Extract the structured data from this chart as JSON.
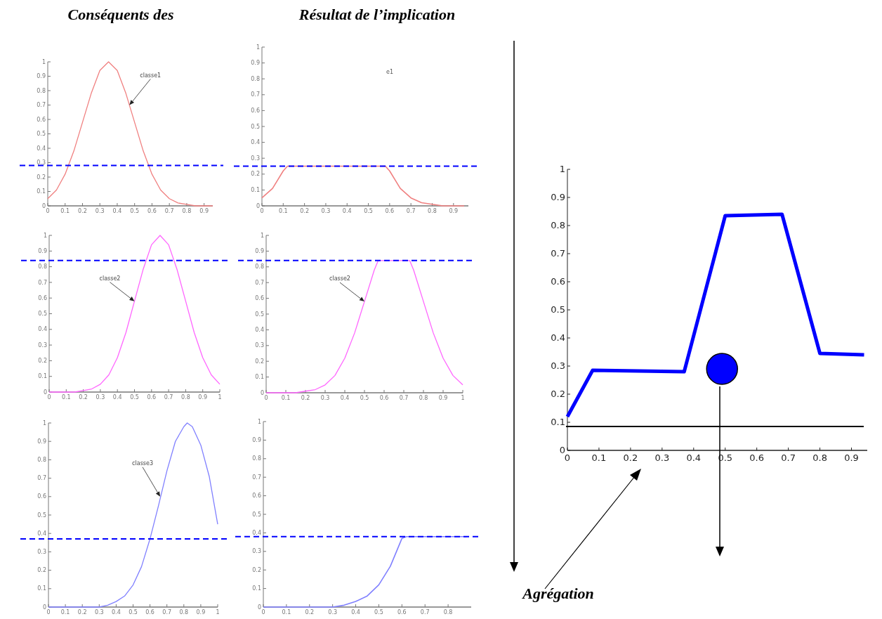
{
  "chart_data": [
    {
      "type": "line",
      "title": "Conséquents des",
      "x": [
        0,
        0.05,
        0.1,
        0.15,
        0.2,
        0.25,
        0.3,
        0.35,
        0.4,
        0.45,
        0.5,
        0.55,
        0.6,
        0.65,
        0.7,
        0.75,
        0.8,
        0.85,
        0.9,
        0.95
      ],
      "series": [
        {
          "color": "#f08080",
          "values": [
            0.05,
            0.11,
            0.22,
            0.38,
            0.58,
            0.78,
            0.94,
            1,
            0.94,
            0.78,
            0.58,
            0.38,
            0.22,
            0.11,
            0.05,
            0.02,
            0.01,
            0,
            0,
            0
          ]
        }
      ],
      "xlim": [
        0,
        0.95
      ],
      "ylim": [
        0,
        1
      ],
      "xticks": [
        0,
        0.1,
        0.2,
        0.3,
        0.4,
        0.5,
        0.6,
        0.7,
        0.8,
        0.9
      ],
      "yticks": [
        0,
        0.1,
        0.2,
        0.3,
        0.4,
        0.5,
        0.6,
        0.7,
        0.8,
        0.9,
        1
      ],
      "ref_lines": [
        {
          "axis": "y",
          "value": 0.28,
          "color": "#0000ff",
          "line_style": "dashed"
        }
      ],
      "annotations": [
        {
          "text": "classe1",
          "x": 0.47,
          "y": 0.7
        }
      ]
    },
    {
      "type": "line",
      "title": "Résultat de l’implication",
      "x": [
        0,
        0.05,
        0.1,
        0.12,
        0.55,
        0.58,
        0.6,
        0.65,
        0.7,
        0.75,
        0.8,
        0.85,
        0.9,
        0.95
      ],
      "series": [
        {
          "color": "#f08080",
          "values": [
            0.05,
            0.11,
            0.22,
            0.25,
            0.25,
            0.25,
            0.22,
            0.11,
            0.05,
            0.02,
            0.01,
            0,
            0,
            0
          ]
        }
      ],
      "xlim": [
        0,
        0.97
      ],
      "ylim": [
        0,
        1
      ],
      "xticks": [
        0,
        0.1,
        0.2,
        0.3,
        0.4,
        0.5,
        0.6,
        0.7,
        0.8,
        0.9
      ],
      "yticks": [
        0,
        0.1,
        0.2,
        0.3,
        0.4,
        0.5,
        0.6,
        0.7,
        0.8,
        0.9,
        1
      ],
      "ref_lines": [
        {
          "axis": "y",
          "value": 0.25,
          "color": "#0000ff",
          "line_style": "dashed"
        }
      ],
      "annotations": [
        "e1"
      ]
    },
    {
      "type": "line",
      "x": [
        0,
        0.05,
        0.1,
        0.15,
        0.2,
        0.25,
        0.3,
        0.35,
        0.4,
        0.45,
        0.5,
        0.55,
        0.6,
        0.65,
        0.7,
        0.75,
        0.8,
        0.85,
        0.9,
        0.95,
        1
      ],
      "series": [
        {
          "color": "#ff66ff",
          "values": [
            0,
            0,
            0,
            0,
            0.01,
            0.02,
            0.05,
            0.11,
            0.22,
            0.38,
            0.58,
            0.78,
            0.94,
            1,
            0.94,
            0.78,
            0.58,
            0.38,
            0.22,
            0.11,
            0.05
          ]
        }
      ],
      "xlim": [
        0,
        1
      ],
      "ylim": [
        0,
        1
      ],
      "xticks": [
        0,
        0.1,
        0.2,
        0.3,
        0.4,
        0.5,
        0.6,
        0.7,
        0.8,
        0.9,
        1
      ],
      "yticks": [
        0,
        0.1,
        0.2,
        0.3,
        0.4,
        0.5,
        0.6,
        0.7,
        0.8,
        0.9,
        1
      ],
      "ref_lines": [
        {
          "axis": "y",
          "value": 0.84,
          "color": "#0000ff",
          "line_style": "dashed"
        }
      ],
      "annotations": [
        {
          "text": "classe2",
          "x": 0.5,
          "y": 0.58
        }
      ]
    },
    {
      "type": "line",
      "x": [
        0,
        0.05,
        0.1,
        0.15,
        0.2,
        0.25,
        0.3,
        0.35,
        0.4,
        0.45,
        0.5,
        0.55,
        0.57,
        0.73,
        0.75,
        0.8,
        0.85,
        0.9,
        0.95,
        1
      ],
      "series": [
        {
          "color": "#ff66ff",
          "values": [
            0,
            0,
            0,
            0,
            0.01,
            0.02,
            0.05,
            0.11,
            0.22,
            0.38,
            0.58,
            0.78,
            0.84,
            0.84,
            0.78,
            0.58,
            0.38,
            0.22,
            0.11,
            0.05
          ]
        }
      ],
      "xlim": [
        0,
        1
      ],
      "ylim": [
        0,
        1
      ],
      "xticks": [
        0,
        0.1,
        0.2,
        0.3,
        0.4,
        0.5,
        0.6,
        0.7,
        0.8,
        0.9,
        1
      ],
      "yticks": [
        0,
        0.1,
        0.2,
        0.3,
        0.4,
        0.5,
        0.6,
        0.7,
        0.8,
        0.9,
        1
      ],
      "ref_lines": [
        {
          "axis": "y",
          "value": 0.84,
          "color": "#0000ff",
          "line_style": "dashed"
        }
      ],
      "annotations": [
        {
          "text": "classe2",
          "x": 0.5,
          "y": 0.58
        }
      ]
    },
    {
      "type": "line",
      "x": [
        0,
        0.05,
        0.1,
        0.15,
        0.2,
        0.25,
        0.3,
        0.35,
        0.4,
        0.45,
        0.5,
        0.55,
        0.6,
        0.65,
        0.7,
        0.75,
        0.8,
        0.82,
        0.85,
        0.9,
        0.95,
        1
      ],
      "series": [
        {
          "color": "#8080ff",
          "values": [
            0,
            0,
            0,
            0,
            0,
            0,
            0,
            0.01,
            0.03,
            0.06,
            0.12,
            0.22,
            0.37,
            0.55,
            0.74,
            0.9,
            0.98,
            1,
            0.98,
            0.88,
            0.71,
            0.45
          ]
        }
      ],
      "xlim": [
        0,
        1
      ],
      "ylim": [
        0,
        1
      ],
      "xticks": [
        0,
        0.1,
        0.2,
        0.3,
        0.4,
        0.5,
        0.6,
        0.7,
        0.8,
        0.9,
        1
      ],
      "yticks": [
        0,
        0.1,
        0.2,
        0.3,
        0.4,
        0.5,
        0.6,
        0.7,
        0.8,
        0.9,
        1
      ],
      "ref_lines": [
        {
          "axis": "y",
          "value": 0.37,
          "color": "#0000ff",
          "line_style": "dashed"
        }
      ],
      "annotations": [
        {
          "text": "classe3",
          "x": 0.66,
          "y": 0.6
        }
      ]
    },
    {
      "type": "line",
      "x": [
        0,
        0.05,
        0.1,
        0.15,
        0.2,
        0.25,
        0.3,
        0.35,
        0.4,
        0.45,
        0.5,
        0.55,
        0.6,
        0.62,
        0.88
      ],
      "series": [
        {
          "color": "#8080ff",
          "values": [
            0,
            0,
            0,
            0,
            0,
            0,
            0,
            0.01,
            0.03,
            0.06,
            0.12,
            0.22,
            0.37,
            0.38,
            0.38
          ]
        }
      ],
      "xlim": [
        0,
        0.9
      ],
      "ylim": [
        0,
        1
      ],
      "xticks": [
        0,
        0.1,
        0.2,
        0.3,
        0.4,
        0.5,
        0.6,
        0.7,
        0.8
      ],
      "yticks": [
        0,
        0.1,
        0.2,
        0.3,
        0.4,
        0.5,
        0.6,
        0.7,
        0.8,
        0.9,
        1
      ],
      "ref_lines": [
        {
          "axis": "y",
          "value": 0.38,
          "color": "#0000ff",
          "line_style": "dashed"
        }
      ]
    },
    {
      "type": "line",
      "x": [
        0,
        0.08,
        0.37,
        0.5,
        0.68,
        0.8,
        0.94
      ],
      "series": [
        {
          "color": "#0000ff",
          "values": [
            0.12,
            0.285,
            0.28,
            0.835,
            0.84,
            0.345,
            0.34
          ]
        },
        {
          "type": "scatter",
          "color": "#0000ff",
          "marker": "circle",
          "x": [
            0.49
          ],
          "values": [
            0.29
          ]
        }
      ],
      "xlim": [
        0,
        0.95
      ],
      "ylim": [
        0,
        1
      ],
      "xticks": [
        0,
        0.1,
        0.2,
        0.3,
        0.4,
        0.5,
        0.6,
        0.7,
        0.8,
        0.9
      ],
      "yticks": [
        0,
        0.1,
        0.2,
        0.3,
        0.4,
        0.5,
        0.6,
        0.7,
        0.8,
        0.9,
        1
      ],
      "ref_lines": [
        {
          "axis": "y",
          "value": 0.085,
          "color": "#000000",
          "line_style": "solid"
        }
      ],
      "annotations": [
        "Agrégation"
      ]
    }
  ]
}
